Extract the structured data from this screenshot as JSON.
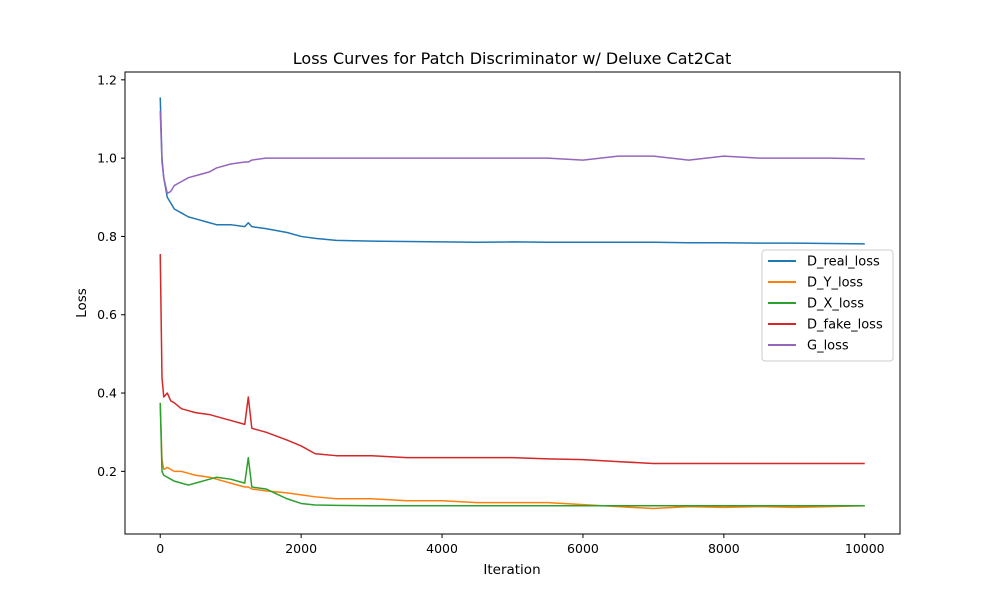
{
  "chart_data": {
    "type": "line",
    "title": "Loss Curves for Patch Discriminator w/ Deluxe Cat2Cat",
    "xlabel": "Iteration",
    "ylabel": "Loss",
    "xlim": [
      -500,
      10500
    ],
    "ylim": [
      0.04,
      1.22
    ],
    "xticks": [
      0,
      2000,
      4000,
      6000,
      8000,
      10000
    ],
    "xtick_labels": [
      "0",
      "2000",
      "4000",
      "6000",
      "8000",
      "10000"
    ],
    "yticks": [
      0.2,
      0.4,
      0.6,
      0.8,
      1.0,
      1.2
    ],
    "ytick_labels": [
      "0.2",
      "0.4",
      "0.6",
      "0.8",
      "1.0",
      "1.2"
    ],
    "grid": false,
    "legend_position": "center-right",
    "x": [
      0,
      25,
      50,
      100,
      150,
      200,
      300,
      400,
      500,
      700,
      800,
      1000,
      1200,
      1250,
      1300,
      1500,
      1800,
      2000,
      2200,
      2500,
      3000,
      3500,
      4000,
      4500,
      5000,
      5500,
      6000,
      6500,
      7000,
      7500,
      8000,
      8500,
      9000,
      9500,
      10000
    ],
    "series": [
      {
        "name": "D_real_loss",
        "color": "#1f77b4",
        "values": [
          1.155,
          1.0,
          0.95,
          0.9,
          0.885,
          0.87,
          0.86,
          0.85,
          0.845,
          0.835,
          0.83,
          0.83,
          0.825,
          0.835,
          0.825,
          0.82,
          0.81,
          0.8,
          0.795,
          0.79,
          0.788,
          0.787,
          0.786,
          0.785,
          0.786,
          0.785,
          0.785,
          0.785,
          0.785,
          0.784,
          0.784,
          0.783,
          0.783,
          0.782,
          0.781
        ]
      },
      {
        "name": "D_Y_loss",
        "color": "#ff7f0e",
        "values": [
          0.375,
          0.23,
          0.205,
          0.21,
          0.205,
          0.2,
          0.2,
          0.195,
          0.19,
          0.185,
          0.18,
          0.17,
          0.16,
          0.16,
          0.155,
          0.15,
          0.145,
          0.14,
          0.135,
          0.13,
          0.13,
          0.125,
          0.125,
          0.12,
          0.12,
          0.12,
          0.115,
          0.11,
          0.105,
          0.11,
          0.108,
          0.11,
          0.108,
          0.11,
          0.112
        ]
      },
      {
        "name": "D_X_loss",
        "color": "#2ca02c",
        "values": [
          0.375,
          0.2,
          0.19,
          0.185,
          0.18,
          0.175,
          0.17,
          0.165,
          0.17,
          0.18,
          0.185,
          0.18,
          0.17,
          0.235,
          0.16,
          0.155,
          0.13,
          0.118,
          0.114,
          0.113,
          0.112,
          0.112,
          0.112,
          0.112,
          0.112,
          0.112,
          0.112,
          0.112,
          0.112,
          0.112,
          0.112,
          0.112,
          0.112,
          0.112,
          0.112
        ]
      },
      {
        "name": "D_fake_loss",
        "color": "#d62728",
        "values": [
          0.755,
          0.44,
          0.39,
          0.4,
          0.38,
          0.375,
          0.36,
          0.355,
          0.35,
          0.345,
          0.34,
          0.33,
          0.32,
          0.39,
          0.31,
          0.3,
          0.28,
          0.265,
          0.245,
          0.24,
          0.24,
          0.235,
          0.235,
          0.235,
          0.235,
          0.232,
          0.23,
          0.225,
          0.22,
          0.22,
          0.22,
          0.22,
          0.22,
          0.22,
          0.22
        ]
      },
      {
        "name": "G_loss",
        "color": "#9467bd",
        "values": [
          1.12,
          0.99,
          0.95,
          0.91,
          0.915,
          0.93,
          0.94,
          0.95,
          0.955,
          0.965,
          0.975,
          0.985,
          0.99,
          0.99,
          0.995,
          1.0,
          1.0,
          1.0,
          1.0,
          1.0,
          1.0,
          1.0,
          1.0,
          1.0,
          1.0,
          1.0,
          0.995,
          1.005,
          1.005,
          0.995,
          1.005,
          1.0,
          1.0,
          1.0,
          0.998
        ]
      }
    ]
  }
}
